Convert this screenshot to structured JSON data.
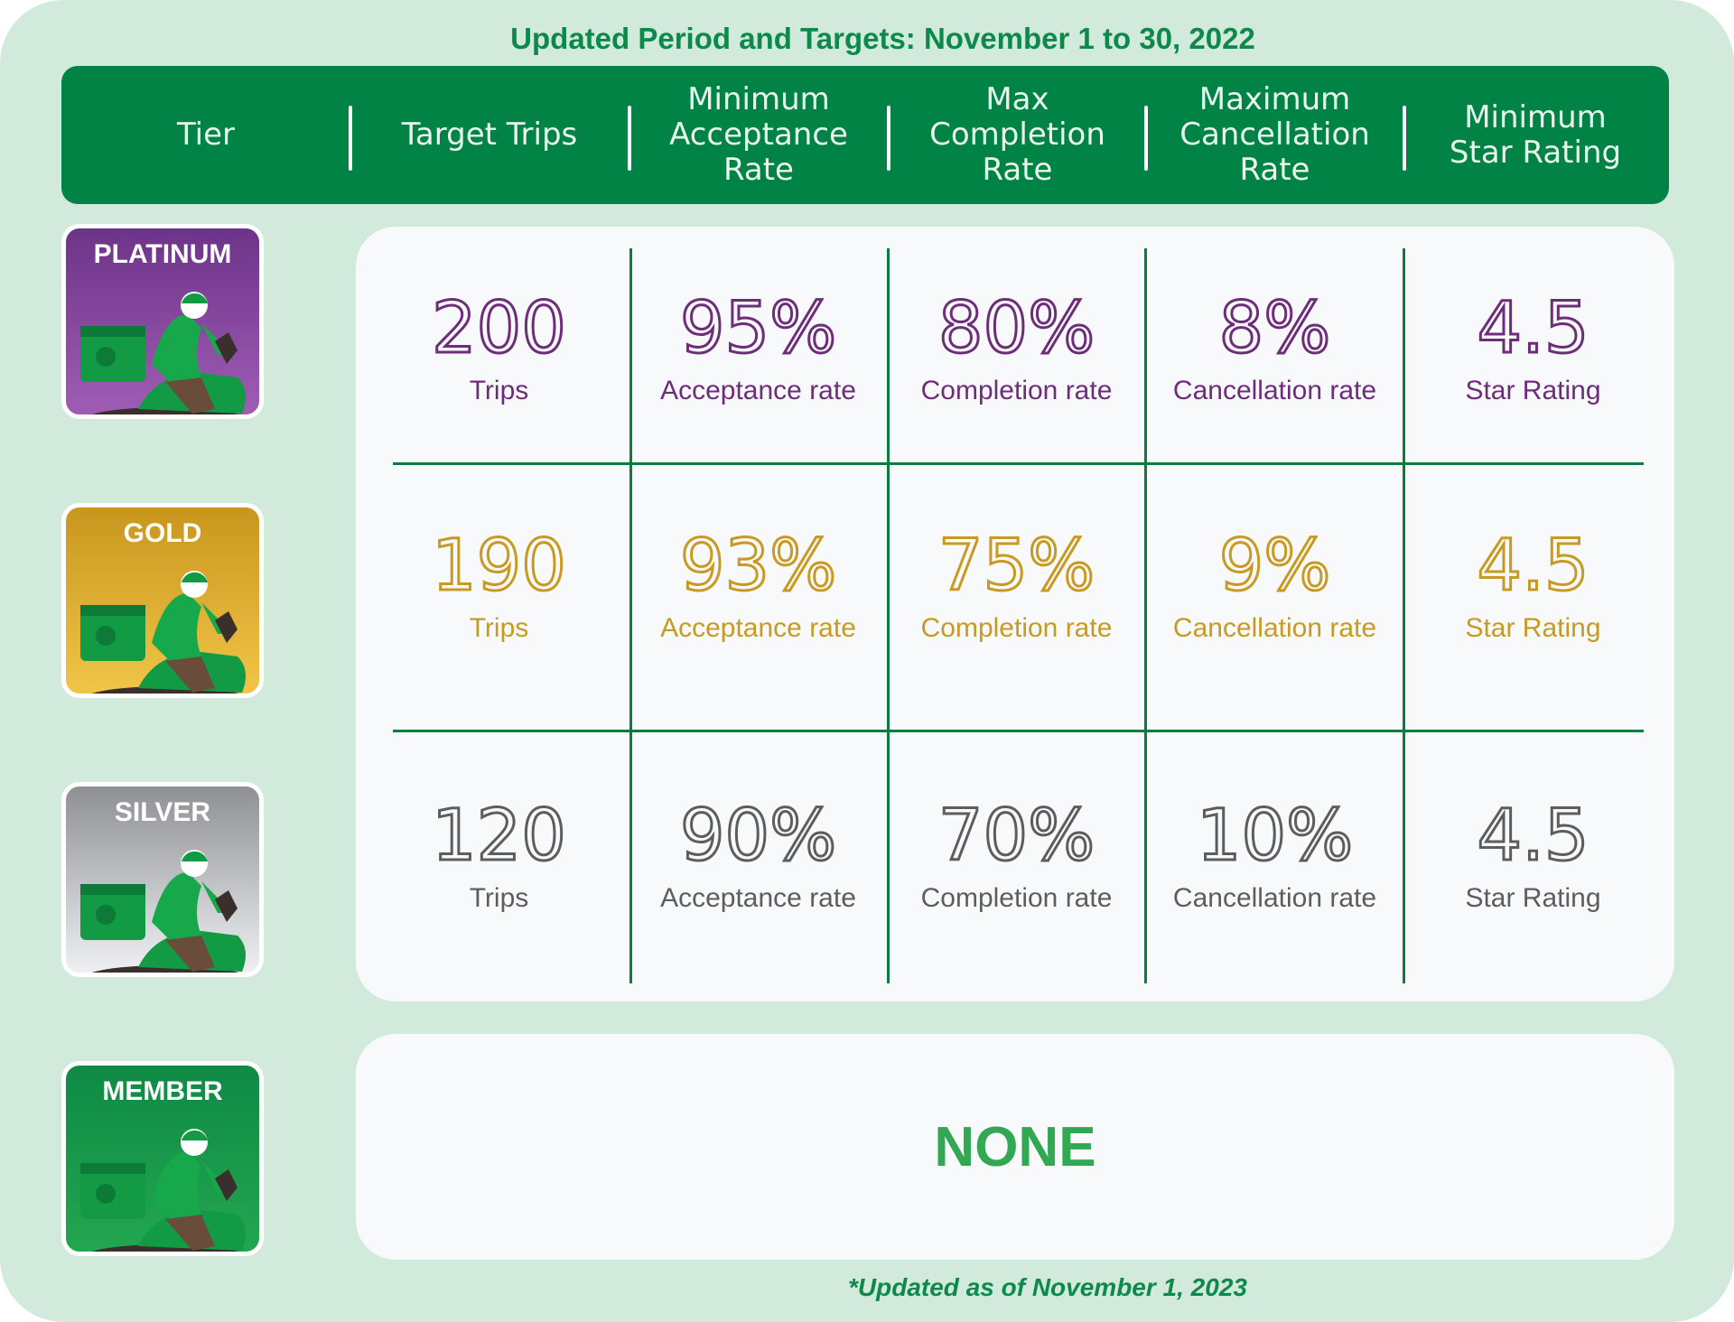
{
  "title": "Updated Period and Targets: November 1 to 30, 2022",
  "header": {
    "columns": [
      "Tier",
      "Target Trips",
      "Minimum\nAcceptance\nRate",
      "Max\nCompletion\nRate",
      "Maximum\nCancellation\nRate",
      "Minimum\nStar Rating"
    ]
  },
  "tiers": [
    {
      "name": "PLATINUM",
      "color": "#6e2d79",
      "values": [
        "200",
        "95%",
        "80%",
        "8%",
        "4.5"
      ],
      "labels": [
        "Trips",
        "Acceptance rate",
        "Completion rate",
        "Cancellation rate",
        "Star Rating"
      ]
    },
    {
      "name": "GOLD",
      "color": "#c99a21",
      "values": [
        "190",
        "93%",
        "75%",
        "9%",
        "4.5"
      ],
      "labels": [
        "Trips",
        "Acceptance rate",
        "Completion rate",
        "Cancellation rate",
        "Star Rating"
      ]
    },
    {
      "name": "SILVER",
      "color": "#5d5d5f",
      "values": [
        "120",
        "90%",
        "70%",
        "10%",
        "4.5"
      ],
      "labels": [
        "Trips",
        "Acceptance rate",
        "Completion rate",
        "Cancellation rate",
        "Star Rating"
      ]
    },
    {
      "name": "MEMBER",
      "color": "#32a852",
      "none_text": "NONE"
    }
  ],
  "footnote": "*Updated as of November 1, 2023",
  "icons": {
    "tier_badge": "delivery-rider-icon"
  },
  "colors": {
    "brand_green": "#018346",
    "background": "#d1eadb"
  }
}
